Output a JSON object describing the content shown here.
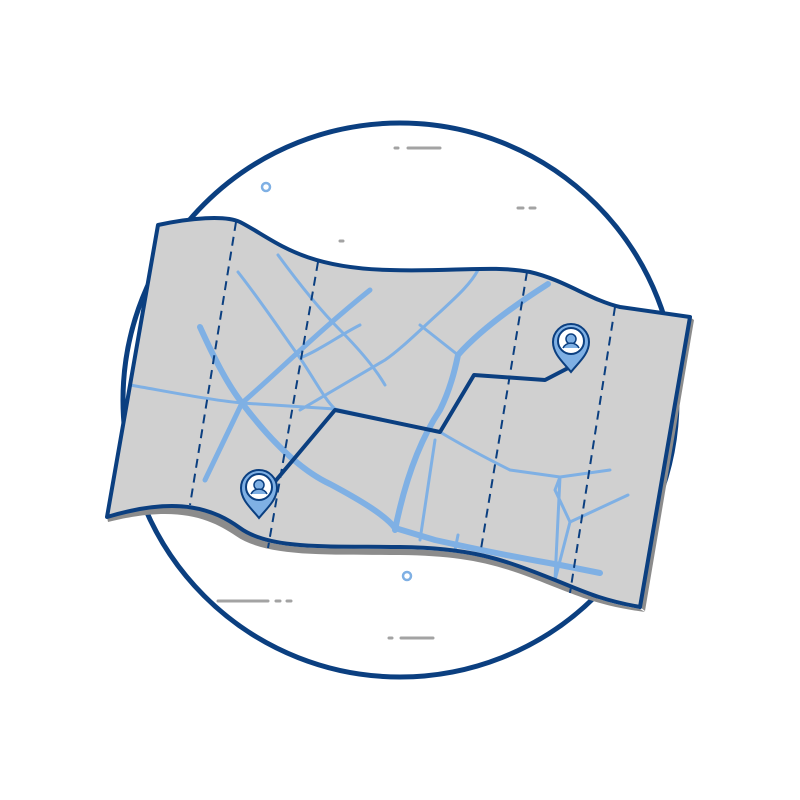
{
  "illustration": {
    "subject": "folded-city-map-with-route",
    "icons": [
      "location-pin-icon",
      "location-pin-icon"
    ],
    "colors": {
      "outline": "#0b3f80",
      "map_paper": "#d0d0d0",
      "map_shadow": "#8c8c8c",
      "street": "#7fb0e4",
      "route": "#0b3f80",
      "decor_dash": "#a3a3a3",
      "decor_dot": "#7fb0e4",
      "background": "#ffffff"
    }
  }
}
